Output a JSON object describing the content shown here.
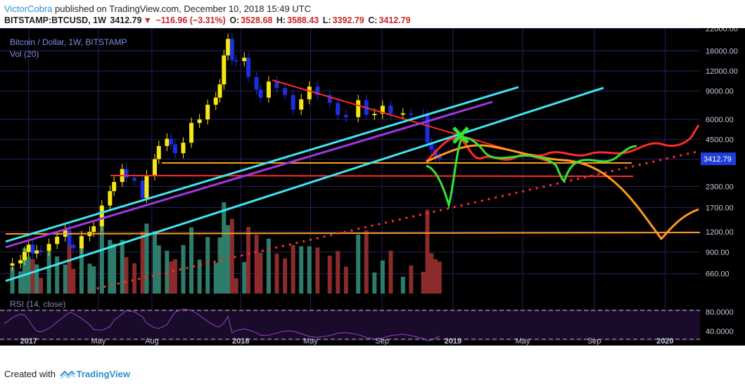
{
  "header": {
    "author": "VictorCobra",
    "published_text": "published on TradingView.com, December 10, 2018 15:49 UTC",
    "symbol": "BITSTAMP:BTCUSD, 1W",
    "last": "3412.79",
    "change": "−116.96 (−3.31%)",
    "o_label": "O:",
    "o_val": "3528.68",
    "h_label": "H:",
    "h_val": "3588.43",
    "l_label": "L:",
    "l_val": "3392.79",
    "c_label": "C:",
    "c_val": "3412.79"
  },
  "legend": {
    "title": "Bitcoin / Dollar, 1W, BITSTAMP",
    "vol": "Vol (20)",
    "rsi": "RSI (14, close)"
  },
  "footer": {
    "created_with": "Created with",
    "brand": "TradingView"
  },
  "colors": {
    "background": "#000000",
    "grid": "#2a2060",
    "candle_up": "#f5e614",
    "candle_down": "#1c2fe0",
    "vol_up": "#2e7d6b",
    "vol_down": "#8b2b2b",
    "cyan": "#3fe6f0",
    "red": "#ff2b2b",
    "orange": "#ff9a1f",
    "green": "#32e632",
    "purple": "#a236e0",
    "rsi": "#9a40c8",
    "price_tag": "#1f3fd6"
  },
  "chart_data": {
    "type": "candlestick",
    "price_scale": "log",
    "y_ticks": [
      660,
      900,
      1200,
      1700,
      2300,
      3400,
      4500,
      6000,
      9000,
      12000,
      16000,
      22000
    ],
    "y_tick_labels": [
      "660.00",
      "900.00",
      "1200.00",
      "1700.00",
      "2300.00",
      "3400.00",
      "4500.00",
      "6000.00",
      "9000.00",
      "12000.00",
      "16000.00",
      "22000.00"
    ],
    "x_labels": [
      "2017",
      "May",
      "Aug",
      "2018",
      "May",
      "Sep",
      "2019",
      "May",
      "Sep",
      "2020"
    ],
    "x_label_dates": [
      "2017-01-01",
      "2017-05-01",
      "2017-08-01",
      "2018-01-01",
      "2018-05-01",
      "2018-09-01",
      "2019-01-01",
      "2019-05-01",
      "2019-09-01",
      "2020-01-01"
    ],
    "x_range": [
      "2016-11-20",
      "2020-03-01"
    ],
    "y_range": [
      560,
      25000
    ],
    "last_price": "3412.79",
    "closes": [
      [
        "2016-11-20",
        740
      ],
      [
        "2016-12-04",
        765
      ],
      [
        "2016-12-18",
        800
      ],
      [
        "2016-12-25",
        900
      ],
      [
        "2017-01-01",
        1000
      ],
      [
        "2017-01-08",
        880
      ],
      [
        "2017-01-15",
        920
      ],
      [
        "2017-01-22",
        915
      ],
      [
        "2017-02-05",
        1010
      ],
      [
        "2017-02-19",
        1120
      ],
      [
        "2017-03-05",
        1230
      ],
      [
        "2017-03-12",
        1000
      ],
      [
        "2017-03-19",
        950
      ],
      [
        "2017-04-02",
        1130
      ],
      [
        "2017-04-16",
        1200
      ],
      [
        "2017-04-23",
        1300
      ],
      [
        "2017-05-07",
        1750
      ],
      [
        "2017-05-21",
        2150
      ],
      [
        "2017-05-28",
        2450
      ],
      [
        "2017-06-11",
        2950
      ],
      [
        "2017-06-18",
        2600
      ],
      [
        "2017-07-02",
        2500
      ],
      [
        "2017-07-16",
        1950
      ],
      [
        "2017-07-23",
        2700
      ],
      [
        "2017-08-06",
        3400
      ],
      [
        "2017-08-13",
        4100
      ],
      [
        "2017-08-27",
        4550
      ],
      [
        "2017-09-03",
        4200
      ],
      [
        "2017-09-10",
        3700
      ],
      [
        "2017-09-24",
        4300
      ],
      [
        "2017-10-08",
        5700
      ],
      [
        "2017-10-22",
        6000
      ],
      [
        "2017-11-05",
        7400
      ],
      [
        "2017-11-19",
        8200
      ],
      [
        "2017-11-26",
        9900
      ],
      [
        "2017-12-03",
        15000
      ],
      [
        "2017-12-10",
        19000
      ],
      [
        "2017-12-17",
        14000
      ],
      [
        "2017-12-24",
        13800
      ],
      [
        "2018-01-07",
        14500
      ],
      [
        "2018-01-14",
        11000
      ],
      [
        "2018-01-28",
        9200
      ],
      [
        "2018-02-04",
        8200
      ],
      [
        "2018-02-18",
        10300
      ],
      [
        "2018-03-04",
        9400
      ],
      [
        "2018-03-18",
        8500
      ],
      [
        "2018-04-01",
        6900
      ],
      [
        "2018-04-15",
        8000
      ],
      [
        "2018-04-29",
        9600
      ],
      [
        "2018-05-13",
        8500
      ],
      [
        "2018-06-03",
        7600
      ],
      [
        "2018-06-17",
        6400
      ],
      [
        "2018-07-01",
        6200
      ],
      [
        "2018-07-22",
        7900
      ],
      [
        "2018-08-05",
        6400
      ],
      [
        "2018-08-19",
        6500
      ],
      [
        "2018-09-02",
        7300
      ],
      [
        "2018-09-16",
        6500
      ],
      [
        "2018-10-07",
        6550
      ],
      [
        "2018-10-21",
        6450
      ],
      [
        "2018-11-11",
        6350
      ],
      [
        "2018-11-18",
        4300
      ],
      [
        "2018-11-25",
        3900
      ],
      [
        "2018-12-02",
        3529
      ],
      [
        "2018-12-09",
        3412.79
      ]
    ],
    "volume_scale_note": "relative volume, bars colored by candle direction",
    "rsi": {
      "upper_band": 70,
      "lower_band": 30,
      "y_ticks": [
        40,
        80
      ],
      "y_tick_labels": [
        "40.0000",
        "80.0000"
      ]
    }
  }
}
